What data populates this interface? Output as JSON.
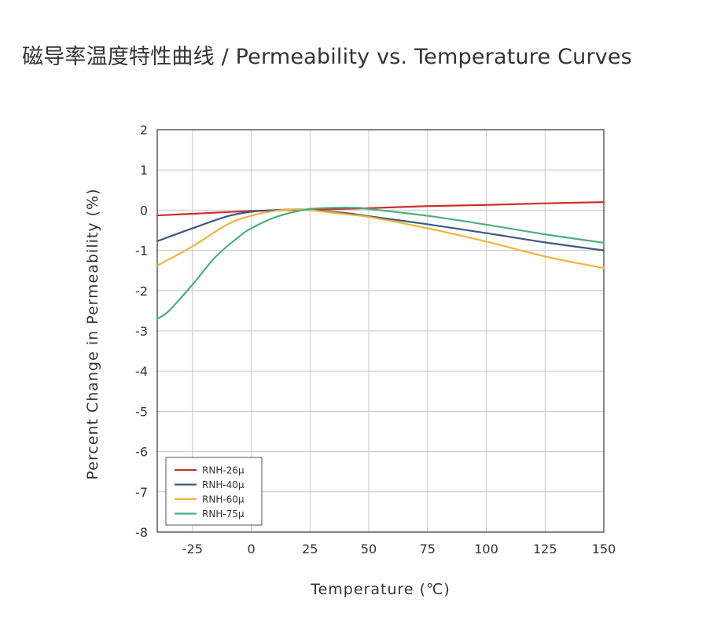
{
  "page": {
    "title": "磁导率温度特性曲线 / Permeability vs. Temperature Curves"
  },
  "chart_data": {
    "type": "line",
    "xlabel": "Temperature (℃)",
    "ylabel": "Percent Change in Permeability (%)",
    "xlim": [
      -40,
      150
    ],
    "ylim": [
      -8,
      2
    ],
    "xticks": [
      -25,
      0,
      25,
      50,
      75,
      100,
      125,
      150
    ],
    "yticks": [
      2,
      1,
      0,
      -1,
      -2,
      -3,
      -4,
      -5,
      -6,
      -7,
      -8
    ],
    "grid": true,
    "legend_position": "bottom-left",
    "series": [
      {
        "name": "RNH-26μ",
        "color": "#c8322d",
        "x": [
          -40,
          -25,
          0,
          15,
          25,
          50,
          75,
          100,
          125,
          150
        ],
        "y": [
          -0.13,
          -0.09,
          -0.02,
          0.0,
          0.01,
          0.05,
          0.1,
          0.13,
          0.17,
          0.2
        ]
      },
      {
        "name": "RNH-40μ",
        "color": "#3d5a80",
        "x": [
          -40,
          -25,
          -10,
          0,
          10,
          20,
          25,
          40,
          50,
          75,
          100,
          125,
          150
        ],
        "y": [
          -0.77,
          -0.45,
          -0.15,
          -0.04,
          0.0,
          0.02,
          0.0,
          -0.07,
          -0.15,
          -0.35,
          -0.57,
          -0.8,
          -1.0
        ]
      },
      {
        "name": "RNH-60μ",
        "color": "#f0b43c",
        "x": [
          -40,
          -25,
          -10,
          0,
          10,
          20,
          25,
          40,
          50,
          75,
          100,
          125,
          150
        ],
        "y": [
          -1.38,
          -0.9,
          -0.35,
          -0.14,
          -0.02,
          0.02,
          0.0,
          -0.1,
          -0.17,
          -0.45,
          -0.78,
          -1.15,
          -1.44
        ]
      },
      {
        "name": "RNH-75μ",
        "color": "#4caf7a",
        "x": [
          -40,
          -35,
          -25,
          -15,
          -5,
          0,
          10,
          20,
          25,
          35,
          45,
          50,
          75,
          100,
          125,
          150
        ],
        "y": [
          -2.7,
          -2.5,
          -1.85,
          -1.15,
          -0.65,
          -0.45,
          -0.18,
          -0.02,
          0.03,
          0.06,
          0.06,
          0.03,
          -0.14,
          -0.36,
          -0.6,
          -0.81
        ]
      }
    ]
  }
}
